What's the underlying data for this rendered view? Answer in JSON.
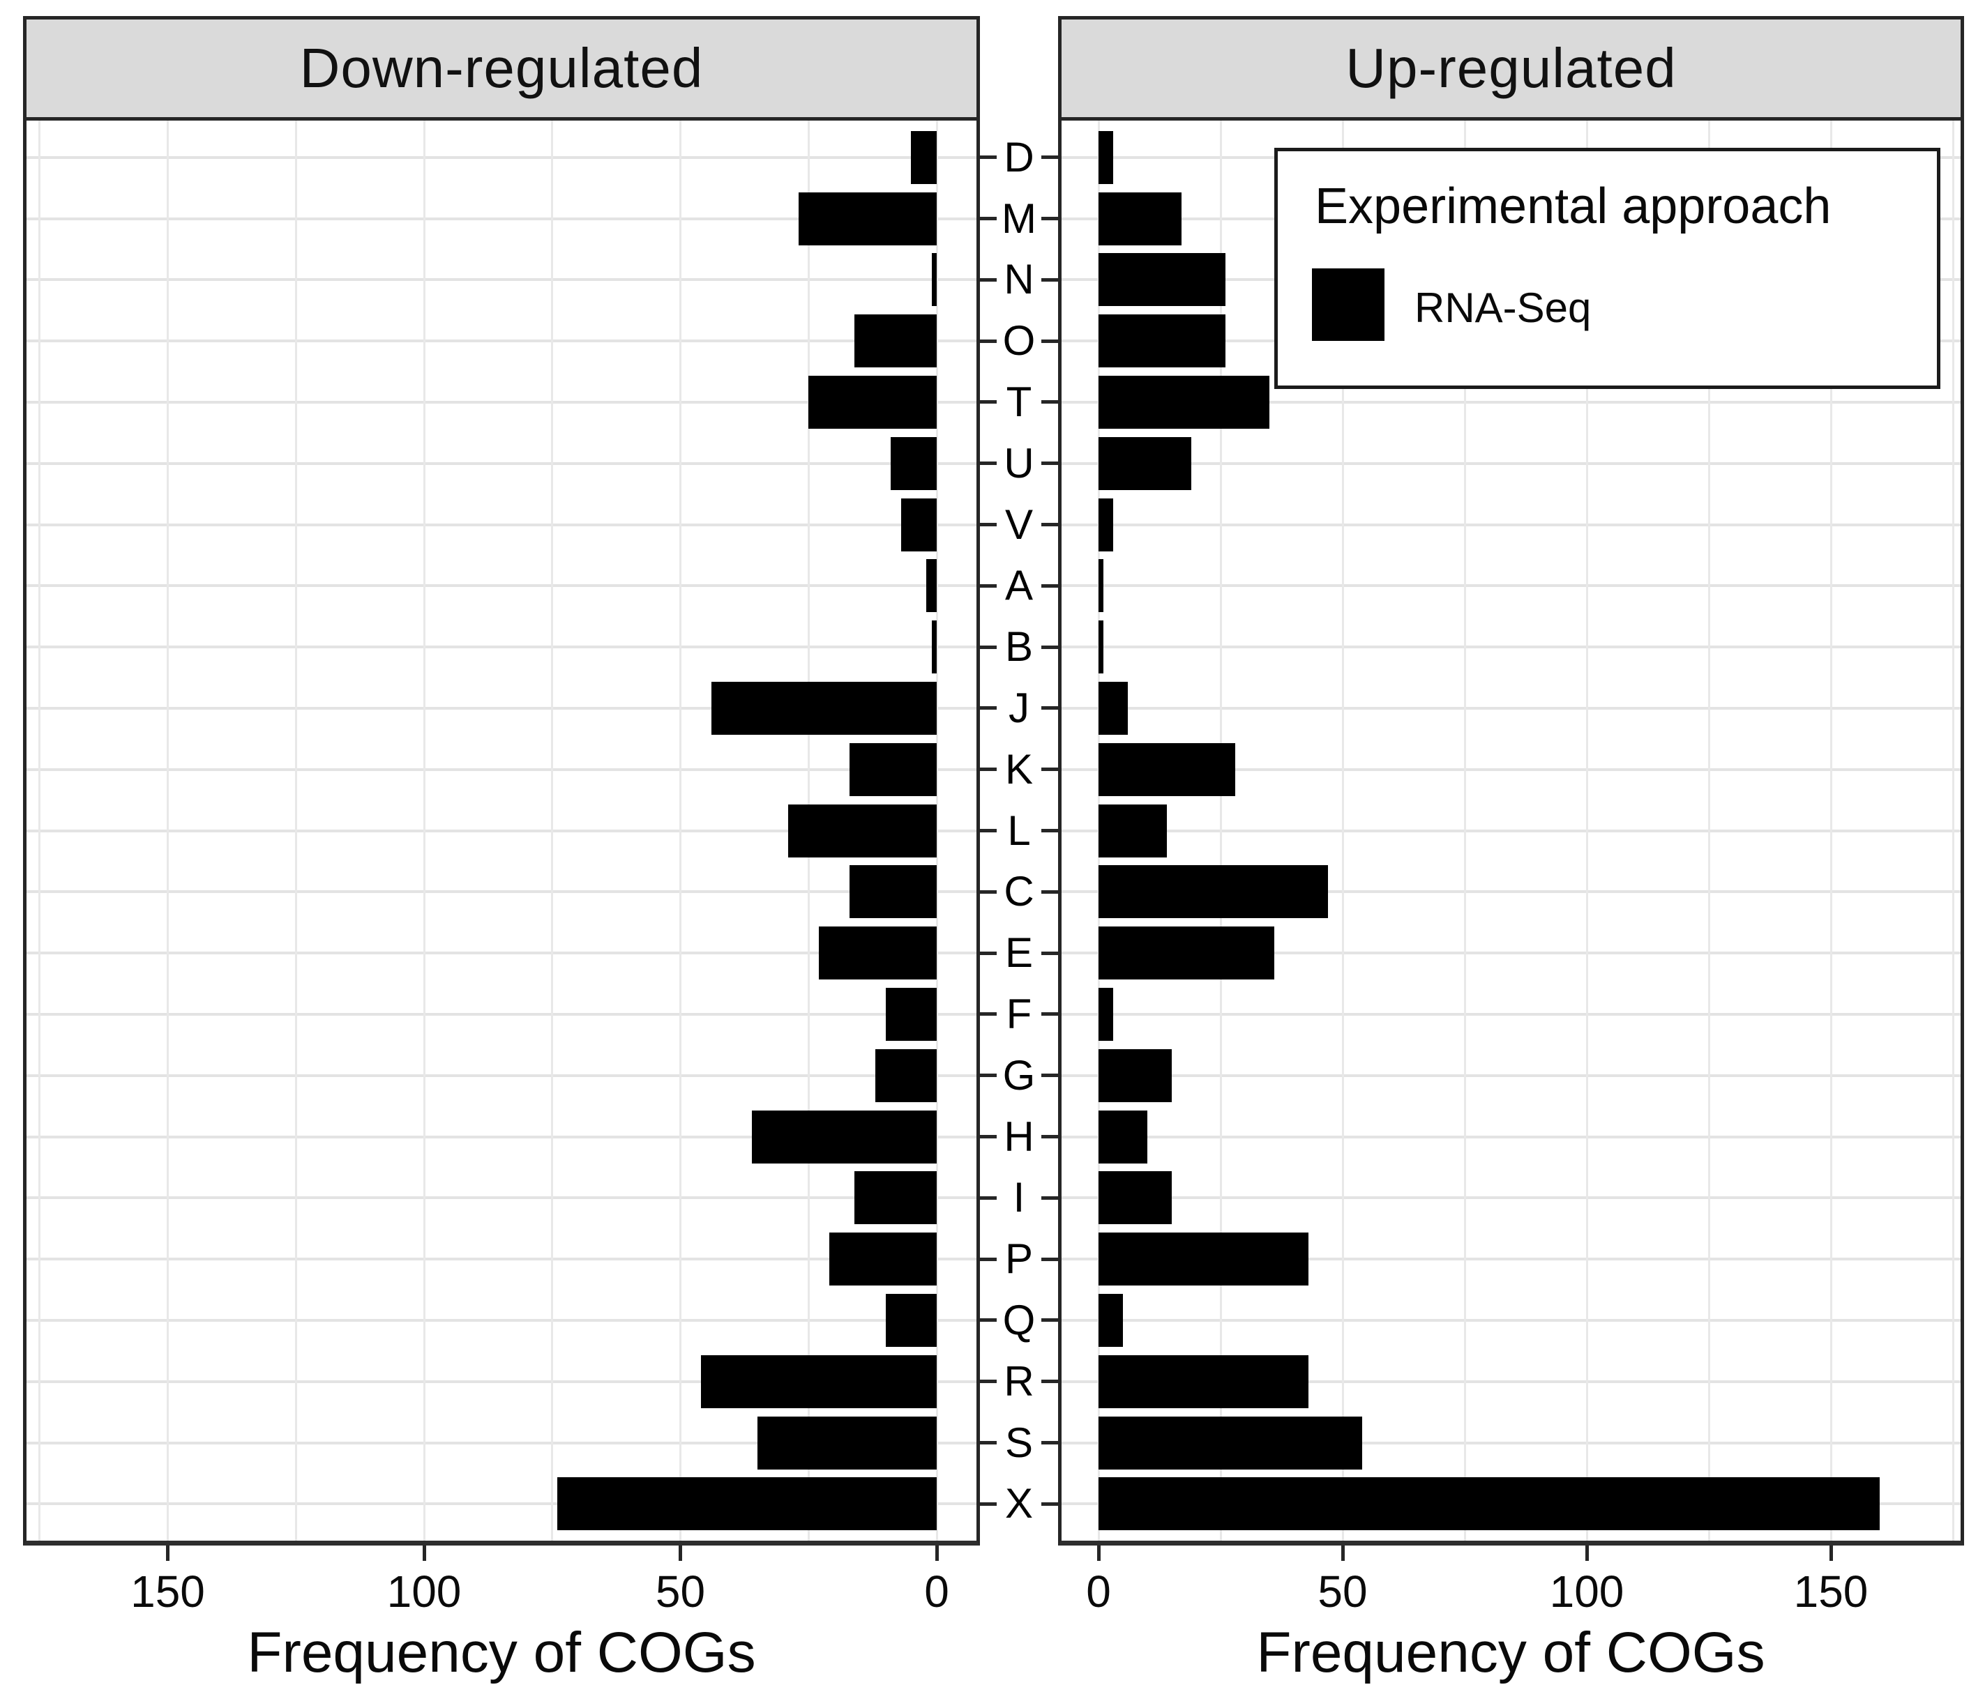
{
  "figure": {
    "panel_titles": {
      "down": "Down-regulated",
      "up": "Up-regulated"
    },
    "axis_title": "Frequency of COGs",
    "legend": {
      "title": "Experimental approach",
      "items": [
        {
          "label": "RNA-Seq",
          "swatch_color": "#000000"
        }
      ]
    },
    "colors": {
      "bar": "#000000",
      "strip_background": "#dadada",
      "panel_border": "#262626",
      "gridline": "#e6e6e6",
      "text": "#0a0a0a"
    }
  },
  "chart_data": {
    "type": "bar",
    "orientation": "horizontal",
    "facets": [
      "Down-regulated",
      "Up-regulated"
    ],
    "categories": [
      "D",
      "M",
      "N",
      "O",
      "T",
      "U",
      "V",
      "A",
      "B",
      "J",
      "K",
      "L",
      "C",
      "E",
      "F",
      "G",
      "H",
      "I",
      "P",
      "Q",
      "R",
      "S",
      "X"
    ],
    "series": [
      {
        "name": "Down-regulated",
        "values": [
          5,
          27,
          1,
          16,
          25,
          9,
          7,
          2,
          1,
          44,
          17,
          29,
          17,
          23,
          10,
          12,
          36,
          16,
          21,
          10,
          46,
          35,
          74
        ]
      },
      {
        "name": "Up-regulated",
        "values": [
          3,
          17,
          26,
          26,
          35,
          19,
          3,
          1,
          1,
          6,
          28,
          14,
          47,
          36,
          3,
          15,
          10,
          15,
          43,
          5,
          43,
          54,
          160
        ]
      }
    ],
    "x_ticks_down": [
      150,
      100,
      50,
      0
    ],
    "x_ticks_up": [
      0,
      50,
      100,
      150
    ],
    "xlabel": "Frequency of COGs",
    "x_range": [
      0,
      160
    ],
    "gridline_step": 25,
    "legend_position": "top-right of Up-regulated panel",
    "legend_series": "RNA-Seq",
    "bar_color": "#000000"
  }
}
